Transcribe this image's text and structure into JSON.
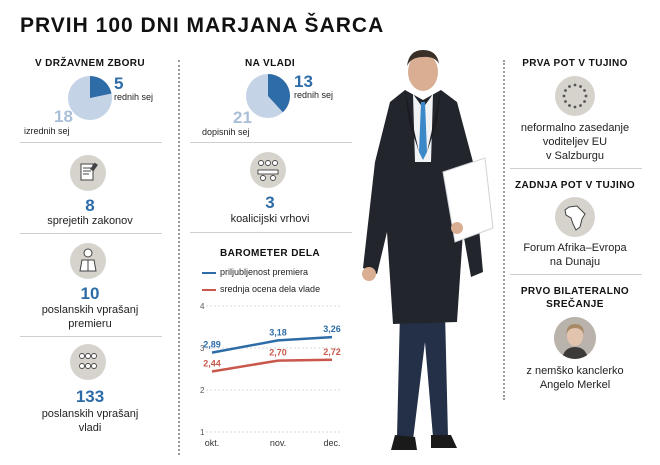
{
  "title": "PRVIH 100 DNI MARJANA ŠARCA",
  "colors": {
    "blue": "#2e6ca8",
    "light_blue": "#c5d3e6",
    "red": "#c9574b",
    "icon_bg": "#d6d3cd"
  },
  "dz": {
    "heading": "V DRŽAVNEM ZBORU",
    "pie": {
      "redni": 5,
      "izredni": 18
    },
    "redni_label": "rednih sej",
    "izredni_label": "izrednih sej",
    "stat1": {
      "value": "8",
      "label": "sprejetih zakonov"
    },
    "stat2": {
      "value": "10",
      "label1": "poslanskih vprašanj",
      "label2": "premieru"
    },
    "stat3": {
      "value": "133",
      "label1": "poslanskih vprašanj",
      "label2": "vladi"
    },
    "icons": [
      "document-stamp-icon",
      "speaker-podium-icon",
      "group-people-icon"
    ]
  },
  "vlada": {
    "heading": "NA VLADI",
    "pie": {
      "redni": 13,
      "dopisni": 21
    },
    "redni_label": "rednih sej",
    "dopisni_label": "dopisnih sej",
    "stat": {
      "value": "3",
      "label": "koalicijski vrhovi"
    }
  },
  "chart_data": {
    "type": "line",
    "title": "BAROMETER DELA",
    "categories": [
      "okt.",
      "nov.",
      "dec."
    ],
    "ylim": [
      1,
      4
    ],
    "yticks": [
      "1",
      "2",
      "3",
      "4"
    ],
    "series": [
      {
        "name": "priljubljenost premiera",
        "values": [
          2.89,
          3.18,
          3.26
        ],
        "labels": [
          "2,89",
          "3,18",
          "3,26"
        ],
        "color": "#2e6ca8"
      },
      {
        "name": "srednja ocena dela vlade",
        "values": [
          2.44,
          2.7,
          2.72
        ],
        "labels": [
          "2,44",
          "2,70",
          "2,72"
        ],
        "color": "#c9574b"
      }
    ]
  },
  "right": {
    "h1": "PRVA POT V TUJINO",
    "t1": [
      "neformalno zasedanje",
      "voditeljev EU",
      "v Salzburgu"
    ],
    "h2": "ZADNJA POT V TUJINO",
    "t2": [
      "Forum Afrika–Evropa",
      "na Dunaju"
    ],
    "h3a": "PRVO BILATERALNO",
    "h3b": "SREČANJE",
    "t3": [
      "z nemško kanclerko",
      "Angelo Merkel"
    ]
  }
}
